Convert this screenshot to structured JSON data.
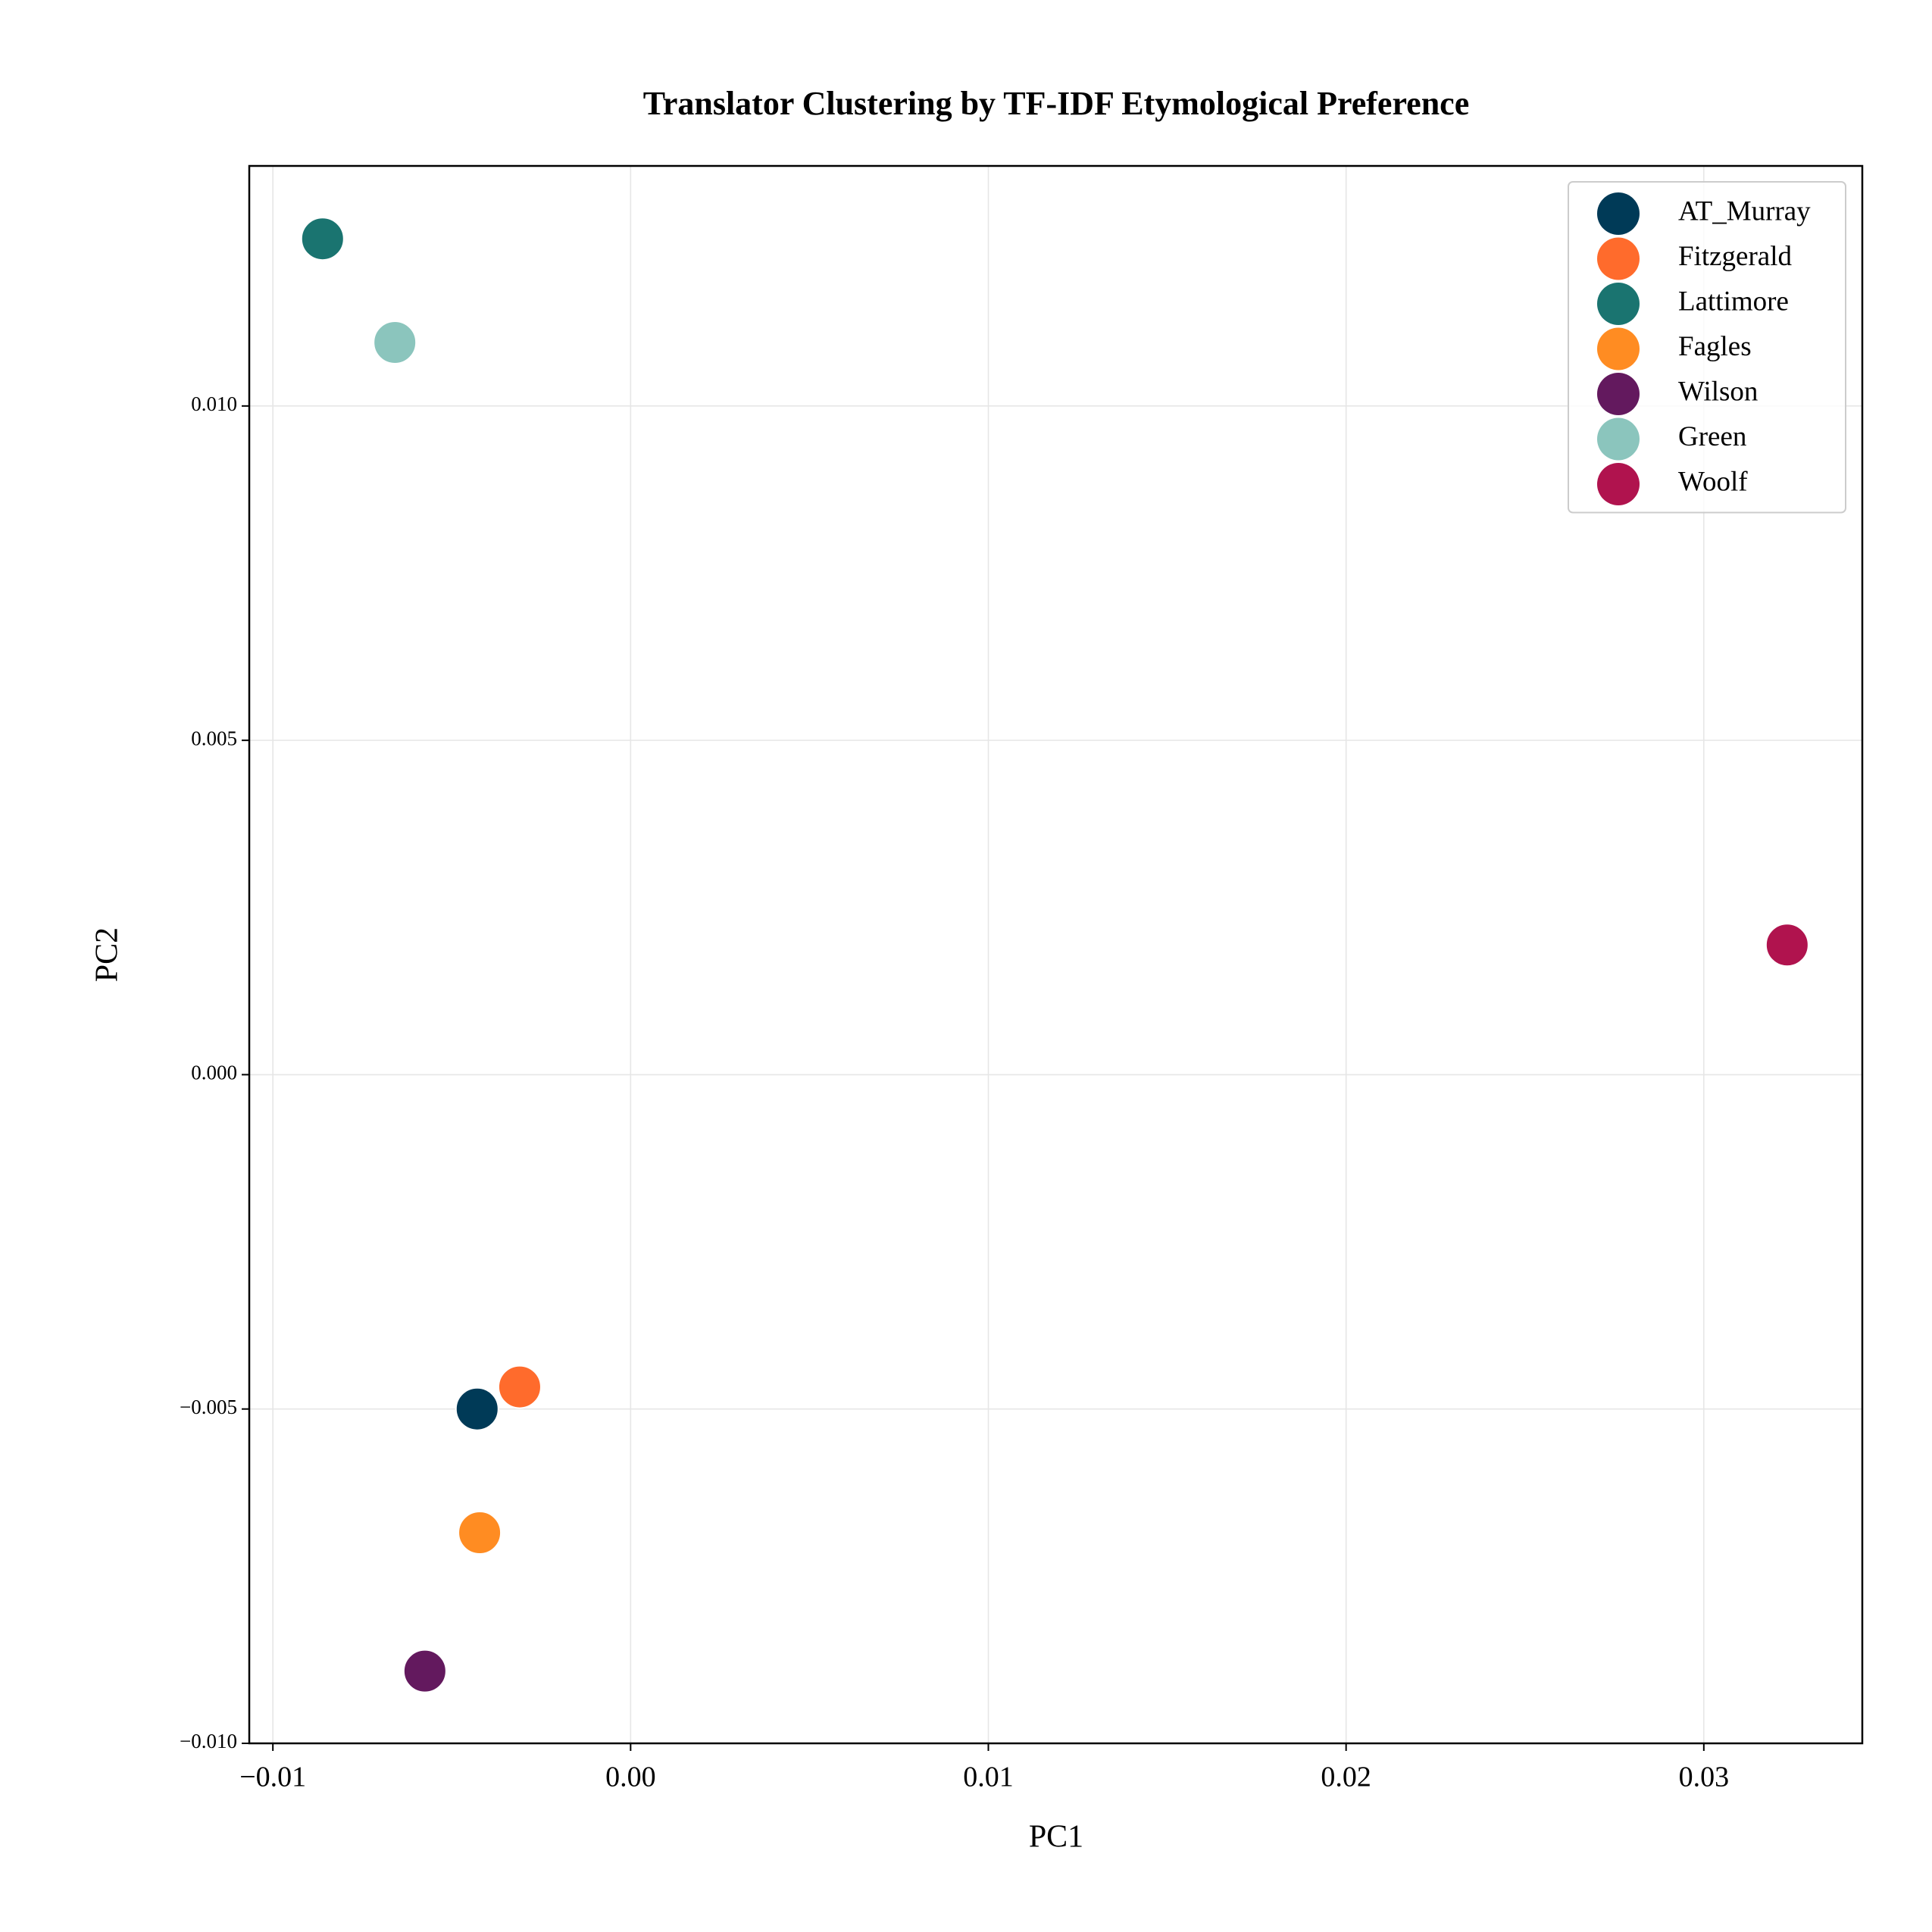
{
  "chart_data": {
    "type": "scatter",
    "title": "Translator Clustering by TF-IDF Etymological Preference",
    "xlabel": "PC1",
    "ylabel": "PC2",
    "xlim": [
      -0.01066,
      0.03443
    ],
    "ylim": [
      -0.01,
      0.01359
    ],
    "xticks": [
      {
        "value": -0.01,
        "label": "−0.01"
      },
      {
        "value": 0,
        "label": "0.00"
      },
      {
        "value": 0.01,
        "label": "0.01"
      },
      {
        "value": 0.02,
        "label": "0.02"
      },
      {
        "value": 0.03,
        "label": "0.03"
      }
    ],
    "yticks": [
      {
        "value": -0.01,
        "label": "−0.010"
      },
      {
        "value": -0.005,
        "label": "−0.005"
      },
      {
        "value": 0,
        "label": "0.000"
      },
      {
        "value": 0.005,
        "label": "0.005"
      },
      {
        "value": 0.01,
        "label": "0.010"
      }
    ],
    "grid": true,
    "legend": "upper right",
    "series": [
      {
        "name": "AT_Murray",
        "color": "#003a57",
        "x": [
          -0.00429
        ],
        "values": [
          -0.005
        ]
      },
      {
        "name": "Fitzgerald",
        "color": "#ff6b2c",
        "x": [
          -0.0031
        ],
        "values": [
          -0.00467
        ]
      },
      {
        "name": "Lattimore",
        "color": "#1a7470",
        "x": [
          -0.00861
        ],
        "values": [
          0.0125
        ]
      },
      {
        "name": "Fagles",
        "color": "#ff8c22",
        "x": [
          -0.00422
        ],
        "values": [
          -0.00685
        ]
      },
      {
        "name": "Wilson",
        "color": "#63195e",
        "x": [
          -0.00575
        ],
        "values": [
          -0.00892
        ]
      },
      {
        "name": "Green",
        "color": "#8bc5bd",
        "x": [
          -0.00659
        ],
        "values": [
          0.01095
        ]
      },
      {
        "name": "Woolf",
        "color": "#b0134e",
        "x": [
          0.03233
        ],
        "values": [
          0.00194
        ]
      }
    ]
  }
}
